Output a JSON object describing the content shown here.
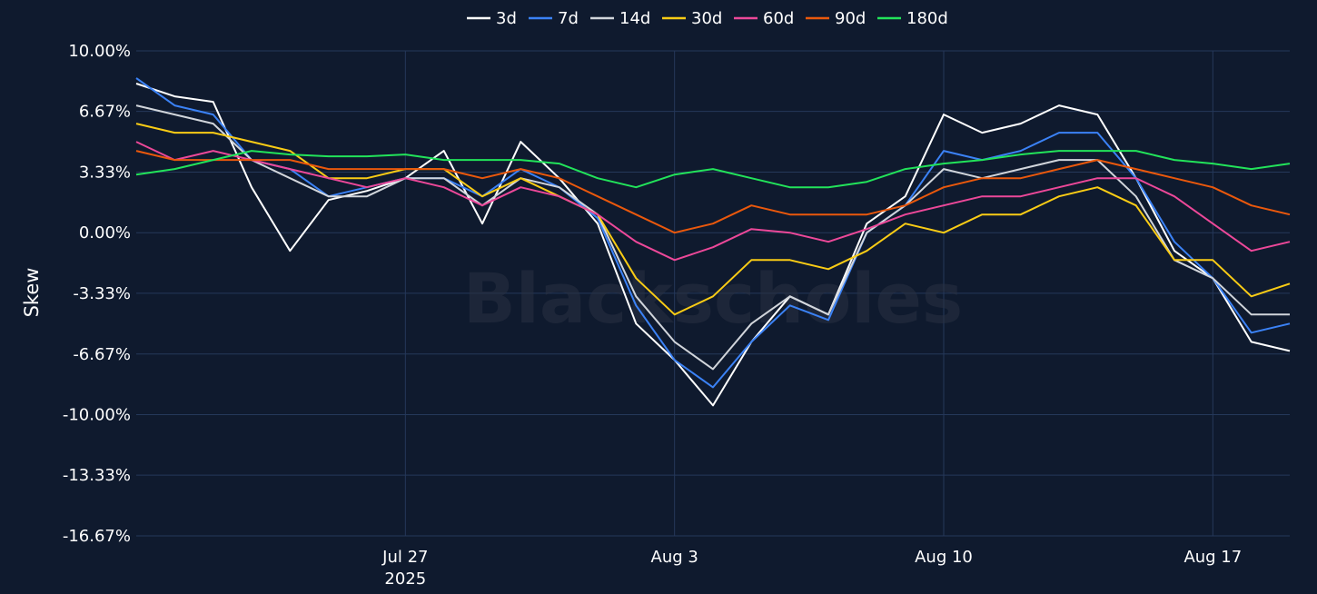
{
  "colors": {
    "background": "#0f1a2e",
    "grid": "#25385a",
    "text": "#ffffff",
    "watermark": "#2a3142"
  },
  "watermark": "Blackscholes",
  "chart_data": {
    "type": "line",
    "ylabel": "Skew",
    "xlabel": "",
    "ylim": [
      -16.67,
      10.0
    ],
    "yticks": [
      10.0,
      6.67,
      3.33,
      0.0,
      -3.33,
      -6.67,
      -10.0,
      -13.33,
      -16.67
    ],
    "ytick_labels": [
      "10.00%",
      "6.67%",
      "3.33%",
      "0.00%",
      "-3.33%",
      "-6.67%",
      "-10.00%",
      "-13.33%",
      "-16.67%"
    ],
    "x_range": [
      "2025-07-20T00:00",
      "2025-08-19T00:00"
    ],
    "xticks": [
      {
        "date": "2025-07-27",
        "label": "Jul 27",
        "sublabel": "2025"
      },
      {
        "date": "2025-08-03",
        "label": "Aug 3",
        "sublabel": ""
      },
      {
        "date": "2025-08-10",
        "label": "Aug 10",
        "sublabel": ""
      },
      {
        "date": "2025-08-17",
        "label": "Aug 17",
        "sublabel": ""
      }
    ],
    "grid": true,
    "legend_position": "top-center",
    "series": [
      {
        "name": "3d",
        "color": "#ffffff",
        "x": [
          "2025-07-20",
          "2025-07-21",
          "2025-07-22",
          "2025-07-23",
          "2025-07-24",
          "2025-07-25",
          "2025-07-26",
          "2025-07-27",
          "2025-07-28",
          "2025-07-29",
          "2025-07-30",
          "2025-07-31",
          "2025-08-01",
          "2025-08-02",
          "2025-08-03",
          "2025-08-04",
          "2025-08-05",
          "2025-08-06",
          "2025-08-07",
          "2025-08-08",
          "2025-08-09",
          "2025-08-10",
          "2025-08-11",
          "2025-08-12",
          "2025-08-13",
          "2025-08-14",
          "2025-08-15",
          "2025-08-16",
          "2025-08-17",
          "2025-08-18",
          "2025-08-19"
        ],
        "values": [
          8.2,
          7.5,
          7.2,
          2.5,
          -1.0,
          1.8,
          2.3,
          3.0,
          4.5,
          0.5,
          5.0,
          3.0,
          0.5,
          -5.0,
          -7.0,
          -9.5,
          -6.0,
          -3.5,
          -4.5,
          0.5,
          2.0,
          6.5,
          5.5,
          6.0,
          7.0,
          6.5,
          3.0,
          -1.0,
          -2.5,
          -6.0,
          -6.5
        ]
      },
      {
        "name": "7d",
        "color": "#3b82f6",
        "x": [
          "2025-07-20",
          "2025-07-21",
          "2025-07-22",
          "2025-07-23",
          "2025-07-24",
          "2025-07-25",
          "2025-07-26",
          "2025-07-27",
          "2025-07-28",
          "2025-07-29",
          "2025-07-30",
          "2025-07-31",
          "2025-08-01",
          "2025-08-02",
          "2025-08-03",
          "2025-08-04",
          "2025-08-05",
          "2025-08-06",
          "2025-08-07",
          "2025-08-08",
          "2025-08-09",
          "2025-08-10",
          "2025-08-11",
          "2025-08-12",
          "2025-08-13",
          "2025-08-14",
          "2025-08-15",
          "2025-08-16",
          "2025-08-17",
          "2025-08-18",
          "2025-08-19"
        ],
        "values": [
          8.5,
          7.0,
          6.5,
          4.0,
          3.5,
          2.0,
          2.5,
          3.0,
          3.0,
          2.0,
          3.5,
          2.5,
          0.8,
          -4.0,
          -7.0,
          -8.5,
          -6.0,
          -4.0,
          -4.8,
          0.0,
          1.5,
          4.5,
          4.0,
          4.5,
          5.5,
          5.5,
          3.0,
          -0.5,
          -2.5,
          -5.5,
          -5.0
        ]
      },
      {
        "name": "14d",
        "color": "#d1d5db",
        "x": [
          "2025-07-20",
          "2025-07-21",
          "2025-07-22",
          "2025-07-23",
          "2025-07-24",
          "2025-07-25",
          "2025-07-26",
          "2025-07-27",
          "2025-07-28",
          "2025-07-29",
          "2025-07-30",
          "2025-07-31",
          "2025-08-01",
          "2025-08-02",
          "2025-08-03",
          "2025-08-04",
          "2025-08-05",
          "2025-08-06",
          "2025-08-07",
          "2025-08-08",
          "2025-08-09",
          "2025-08-10",
          "2025-08-11",
          "2025-08-12",
          "2025-08-13",
          "2025-08-14",
          "2025-08-15",
          "2025-08-16",
          "2025-08-17",
          "2025-08-18",
          "2025-08-19"
        ],
        "values": [
          7.0,
          6.5,
          6.0,
          4.0,
          3.0,
          2.0,
          2.0,
          3.0,
          3.0,
          1.5,
          3.0,
          2.5,
          1.0,
          -3.5,
          -6.0,
          -7.5,
          -5.0,
          -3.5,
          -4.5,
          0.0,
          1.5,
          3.5,
          3.0,
          3.5,
          4.0,
          4.0,
          2.0,
          -1.5,
          -2.5,
          -4.5,
          -4.5
        ]
      },
      {
        "name": "30d",
        "color": "#facc15",
        "x": [
          "2025-07-20",
          "2025-07-21",
          "2025-07-22",
          "2025-07-23",
          "2025-07-24",
          "2025-07-25",
          "2025-07-26",
          "2025-07-27",
          "2025-07-28",
          "2025-07-29",
          "2025-07-30",
          "2025-07-31",
          "2025-08-01",
          "2025-08-02",
          "2025-08-03",
          "2025-08-04",
          "2025-08-05",
          "2025-08-06",
          "2025-08-07",
          "2025-08-08",
          "2025-08-09",
          "2025-08-10",
          "2025-08-11",
          "2025-08-12",
          "2025-08-13",
          "2025-08-14",
          "2025-08-15",
          "2025-08-16",
          "2025-08-17",
          "2025-08-18",
          "2025-08-19"
        ],
        "values": [
          6.0,
          5.5,
          5.5,
          5.0,
          4.5,
          3.0,
          3.0,
          3.5,
          3.5,
          2.0,
          3.0,
          2.0,
          1.0,
          -2.5,
          -4.5,
          -3.5,
          -1.5,
          -1.5,
          -2.0,
          -1.0,
          0.5,
          0.0,
          1.0,
          1.0,
          2.0,
          2.5,
          1.5,
          -1.5,
          -1.5,
          -3.5,
          -2.8
        ]
      },
      {
        "name": "60d",
        "color": "#ec4899",
        "x": [
          "2025-07-20",
          "2025-07-21",
          "2025-07-22",
          "2025-07-23",
          "2025-07-24",
          "2025-07-25",
          "2025-07-26",
          "2025-07-27",
          "2025-07-28",
          "2025-07-29",
          "2025-07-30",
          "2025-07-31",
          "2025-08-01",
          "2025-08-02",
          "2025-08-03",
          "2025-08-04",
          "2025-08-05",
          "2025-08-06",
          "2025-08-07",
          "2025-08-08",
          "2025-08-09",
          "2025-08-10",
          "2025-08-11",
          "2025-08-12",
          "2025-08-13",
          "2025-08-14",
          "2025-08-15",
          "2025-08-16",
          "2025-08-17",
          "2025-08-18",
          "2025-08-19"
        ],
        "values": [
          5.0,
          4.0,
          4.5,
          4.0,
          3.5,
          3.0,
          2.5,
          3.0,
          2.5,
          1.5,
          2.5,
          2.0,
          1.0,
          -0.5,
          -1.5,
          -0.8,
          0.2,
          0.0,
          -0.5,
          0.2,
          1.0,
          1.5,
          2.0,
          2.0,
          2.5,
          3.0,
          3.0,
          2.0,
          0.5,
          -1.0,
          -0.5
        ]
      },
      {
        "name": "90d",
        "color": "#ea580c",
        "x": [
          "2025-07-20",
          "2025-07-21",
          "2025-07-22",
          "2025-07-23",
          "2025-07-24",
          "2025-07-25",
          "2025-07-26",
          "2025-07-27",
          "2025-07-28",
          "2025-07-29",
          "2025-07-30",
          "2025-07-31",
          "2025-08-01",
          "2025-08-02",
          "2025-08-03",
          "2025-08-04",
          "2025-08-05",
          "2025-08-06",
          "2025-08-07",
          "2025-08-08",
          "2025-08-09",
          "2025-08-10",
          "2025-08-11",
          "2025-08-12",
          "2025-08-13",
          "2025-08-14",
          "2025-08-15",
          "2025-08-16",
          "2025-08-17",
          "2025-08-18",
          "2025-08-19"
        ],
        "values": [
          4.5,
          4.0,
          4.0,
          4.0,
          4.0,
          3.5,
          3.5,
          3.5,
          3.5,
          3.0,
          3.5,
          3.0,
          2.0,
          1.0,
          0.0,
          0.5,
          1.5,
          1.0,
          1.0,
          1.0,
          1.5,
          2.5,
          3.0,
          3.0,
          3.5,
          4.0,
          3.5,
          3.0,
          2.5,
          1.5,
          1.0
        ]
      },
      {
        "name": "180d",
        "color": "#22e35a",
        "x": [
          "2025-07-20",
          "2025-07-21",
          "2025-07-22",
          "2025-07-23",
          "2025-07-24",
          "2025-07-25",
          "2025-07-26",
          "2025-07-27",
          "2025-07-28",
          "2025-07-29",
          "2025-07-30",
          "2025-07-31",
          "2025-08-01",
          "2025-08-02",
          "2025-08-03",
          "2025-08-04",
          "2025-08-05",
          "2025-08-06",
          "2025-08-07",
          "2025-08-08",
          "2025-08-09",
          "2025-08-10",
          "2025-08-11",
          "2025-08-12",
          "2025-08-13",
          "2025-08-14",
          "2025-08-15",
          "2025-08-16",
          "2025-08-17",
          "2025-08-18",
          "2025-08-19"
        ],
        "values": [
          3.2,
          3.5,
          4.0,
          4.5,
          4.3,
          4.2,
          4.2,
          4.3,
          4.0,
          4.0,
          4.0,
          3.8,
          3.0,
          2.5,
          3.2,
          3.5,
          3.0,
          2.5,
          2.5,
          2.8,
          3.5,
          3.8,
          4.0,
          4.3,
          4.5,
          4.5,
          4.5,
          4.0,
          3.8,
          3.5,
          3.8
        ]
      }
    ]
  }
}
